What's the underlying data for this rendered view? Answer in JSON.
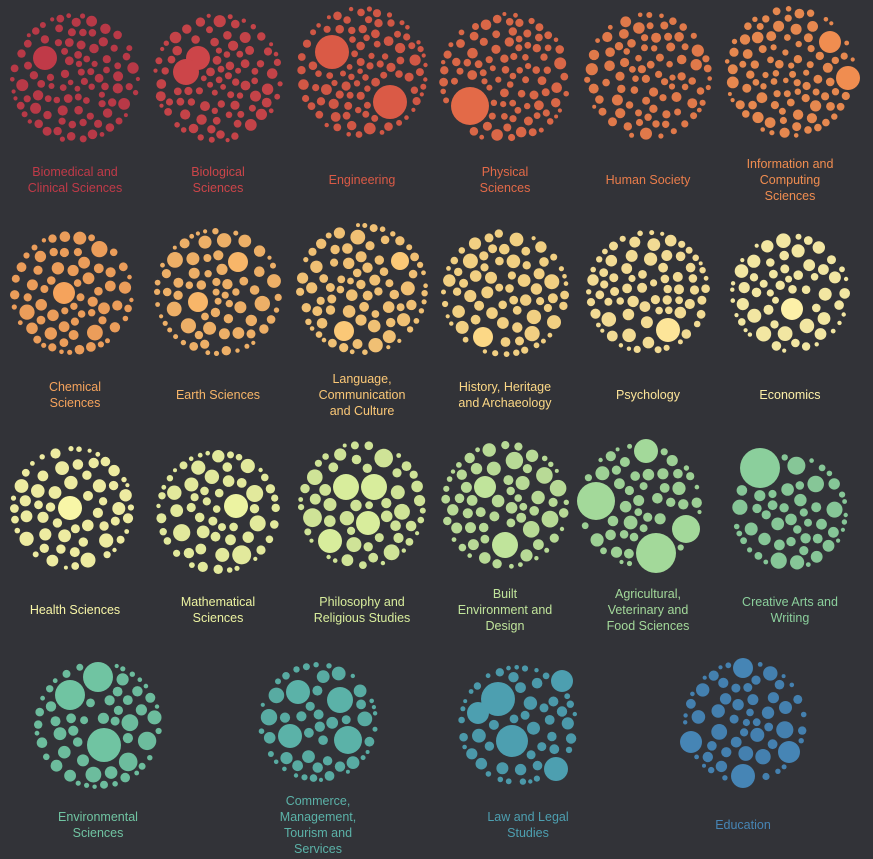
{
  "categories": [
    {
      "label": "Biomedical and\nClinical Sciences",
      "color": "#c03a48"
    },
    {
      "label": "Biological\nSciences",
      "color": "#cc4549"
    },
    {
      "label": "Engineering",
      "color": "#da5a46"
    },
    {
      "label": "Physical\nSciences",
      "color": "#e36a48"
    },
    {
      "label": "Human Society",
      "color": "#ea7d4b"
    },
    {
      "label": "Information and\nComputing\nSciences",
      "color": "#f08d50"
    },
    {
      "label": "Chemical\nSciences",
      "color": "#f5a35c"
    },
    {
      "label": "Earth Sciences",
      "color": "#f8b669"
    },
    {
      "label": "Language,\nCommunication\nand Culture",
      "color": "#fbc877"
    },
    {
      "label": "History, Heritage\nand Archaeology",
      "color": "#fcd886"
    },
    {
      "label": "Psychology",
      "color": "#fde599"
    },
    {
      "label": "Economics",
      "color": "#fdf0a8"
    },
    {
      "label": "Health Sciences",
      "color": "#f8f6a7"
    },
    {
      "label": "Mathematical\nSciences",
      "color": "#ecf3a1"
    },
    {
      "label": "Philosophy and\nReligious Studies",
      "color": "#d8ed9c"
    },
    {
      "label": "Built\nEnvironment and\nDesign",
      "color": "#c0e49b"
    },
    {
      "label": "Agricultural,\nVeterinary and\nFood Sciences",
      "color": "#a3d99a"
    },
    {
      "label": "Creative Arts and\nWriting",
      "color": "#8bcf9c"
    },
    {
      "label": "Environmental\nSciences",
      "color": "#70c4a2"
    },
    {
      "label": "Commerce,\nManagement,\nTourism and\nServices",
      "color": "#5bb2a8"
    },
    {
      "label": "Law and Legal\nStudies",
      "color": "#4d9fb0"
    },
    {
      "label": "Education",
      "color": "#4685b5"
    }
  ]
}
